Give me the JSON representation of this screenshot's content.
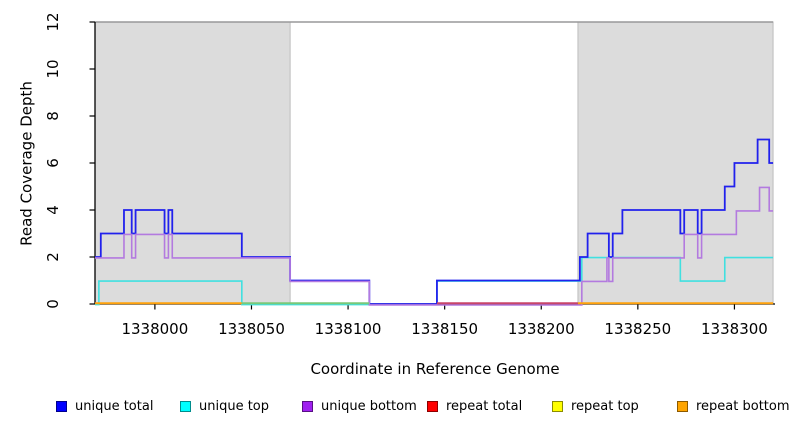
{
  "chart_data": {
    "type": "line",
    "subtype": "step-coverage",
    "title": "",
    "xlabel": "Coordinate in Reference Genome",
    "ylabel": "Read Coverage Depth",
    "xlim": [
      1337969,
      1338321
    ],
    "ylim": [
      0,
      12
    ],
    "x_ticks": [
      1338000,
      1338050,
      1338100,
      1338150,
      1338200,
      1338250,
      1338300
    ],
    "y_ticks": [
      0,
      2,
      4,
      6,
      8,
      10,
      12
    ],
    "grid": false,
    "legend_position": "bottom",
    "top_reference_line_y": 12,
    "shaded_regions": [
      {
        "x0": 1337969,
        "x1": 1338070
      },
      {
        "x0": 1338219,
        "x1": 1338320
      }
    ],
    "series": [
      {
        "name": "unique total",
        "color": "#2121ED",
        "points": [
          [
            1337969,
            2
          ],
          [
            1337972,
            3
          ],
          [
            1337984,
            4
          ],
          [
            1337988,
            3
          ],
          [
            1337990,
            4
          ],
          [
            1338005,
            3
          ],
          [
            1338007,
            4
          ],
          [
            1338009,
            3
          ],
          [
            1338045,
            2
          ],
          [
            1338070,
            1
          ],
          [
            1338111,
            0
          ],
          [
            1338146,
            1
          ],
          [
            1338220,
            2
          ],
          [
            1338224,
            3
          ],
          [
            1338235,
            2
          ],
          [
            1338237,
            3
          ],
          [
            1338242,
            4
          ],
          [
            1338272,
            3
          ],
          [
            1338274,
            4
          ],
          [
            1338281,
            3
          ],
          [
            1338283,
            4
          ],
          [
            1338295,
            5
          ],
          [
            1338300,
            6
          ],
          [
            1338312,
            7
          ],
          [
            1338318,
            6
          ],
          [
            1338320,
            6
          ]
        ]
      },
      {
        "name": "unique top",
        "color": "#40E0E0",
        "points": [
          [
            1337969,
            0
          ],
          [
            1337971,
            1
          ],
          [
            1338045,
            0
          ],
          [
            1338146,
            1
          ],
          [
            1338221,
            2
          ],
          [
            1338272,
            1
          ],
          [
            1338295,
            2
          ],
          [
            1338320,
            2
          ]
        ]
      },
      {
        "name": "unique bottom",
        "color": "#B37ADF",
        "points": [
          [
            1337969,
            2
          ],
          [
            1337984,
            3
          ],
          [
            1337988,
            2
          ],
          [
            1337990,
            3
          ],
          [
            1338005,
            2
          ],
          [
            1338007,
            3
          ],
          [
            1338009,
            2
          ],
          [
            1338070,
            1
          ],
          [
            1338111,
            0
          ],
          [
            1338221,
            1
          ],
          [
            1338234,
            2
          ],
          [
            1338235,
            1
          ],
          [
            1338237,
            2
          ],
          [
            1338274,
            3
          ],
          [
            1338281,
            2
          ],
          [
            1338283,
            3
          ],
          [
            1338301,
            4
          ],
          [
            1338313,
            5
          ],
          [
            1338318,
            4
          ],
          [
            1338320,
            4
          ]
        ]
      },
      {
        "name": "repeat total",
        "color": "#C8456A",
        "points": [
          [
            1337969,
            0
          ],
          [
            1338320,
            0
          ]
        ]
      },
      {
        "name": "repeat top",
        "color": "#FFFF00",
        "points": [
          [
            1337969,
            0
          ],
          [
            1338320,
            0
          ]
        ]
      },
      {
        "name": "repeat bottom",
        "color": "#FFA10A",
        "points": [
          [
            1337969,
            0
          ],
          [
            1338320,
            0
          ]
        ]
      }
    ],
    "zero_line_visible_segments": [
      {
        "x0": 1337969,
        "x1": 1338045,
        "color": "#FFA10A"
      },
      {
        "x0": 1338045,
        "x1": 1338111,
        "color": "#79C979"
      },
      {
        "x0": 1338146,
        "x1": 1338219,
        "color": "#C8456A"
      },
      {
        "x0": 1338219,
        "x1": 1338320,
        "color": "#FFA10A"
      }
    ],
    "legend": [
      {
        "label": "unique total",
        "color": "#0000FF"
      },
      {
        "label": "unique top",
        "color": "#00FFFF"
      },
      {
        "label": "unique bottom",
        "color": "#A020F0"
      },
      {
        "label": "repeat total",
        "color": "#FF0000"
      },
      {
        "label": "repeat top",
        "color": "#FFFF00"
      },
      {
        "label": "repeat bottom",
        "color": "#FFA500"
      }
    ],
    "colors": {
      "shade_fill": "#DCDCDC",
      "shade_border": "#BDBDBD",
      "top_line": "#98989A",
      "axis": "#000000"
    }
  }
}
